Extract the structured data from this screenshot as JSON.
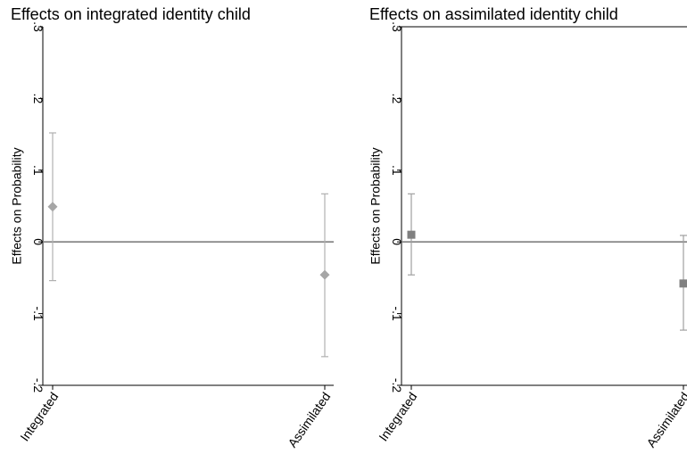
{
  "chart_data": [
    {
      "type": "scatter",
      "title": "Effects on integrated identity child",
      "xlabel": "",
      "ylabel": "Effects on Probability",
      "categories": [
        "Integrated",
        "Assimilated"
      ],
      "ylim": [
        -0.2,
        0.3
      ],
      "yticks": [
        -0.2,
        -0.1,
        0,
        0.1,
        0.2,
        0.3
      ],
      "ytick_labels": [
        "-.2",
        "-.1",
        "0",
        ".1",
        ".2",
        ".3"
      ],
      "reference_line": 0,
      "grid": false,
      "marker": "diamond",
      "marker_color": "#a6a6a6",
      "errorbar_color": "#b0b0b0",
      "points": [
        {
          "category": "Integrated",
          "estimate": 0.049,
          "lower": -0.054,
          "upper": 0.152
        },
        {
          "category": "Assimilated",
          "estimate": -0.046,
          "lower": -0.16,
          "upper": 0.067
        }
      ]
    },
    {
      "type": "scatter",
      "title": "Effects on assimilated identity child",
      "xlabel": "",
      "ylabel": "Effects on Probability",
      "categories": [
        "Integrated",
        "Assimilated"
      ],
      "ylim": [
        -0.2,
        0.3
      ],
      "yticks": [
        -0.2,
        -0.1,
        0,
        0.1,
        0.2,
        0.3
      ],
      "ytick_labels": [
        "-.2",
        "-.1",
        "0",
        ".1",
        ".2",
        ".3"
      ],
      "reference_line": 0,
      "grid": false,
      "marker": "square",
      "marker_color": "#808080",
      "errorbar_color": "#a0a0a0",
      "points": [
        {
          "category": "Integrated",
          "estimate": 0.01,
          "lower": -0.046,
          "upper": 0.067
        },
        {
          "category": "Assimilated",
          "estimate": -0.058,
          "lower": -0.123,
          "upper": 0.009
        }
      ]
    }
  ]
}
